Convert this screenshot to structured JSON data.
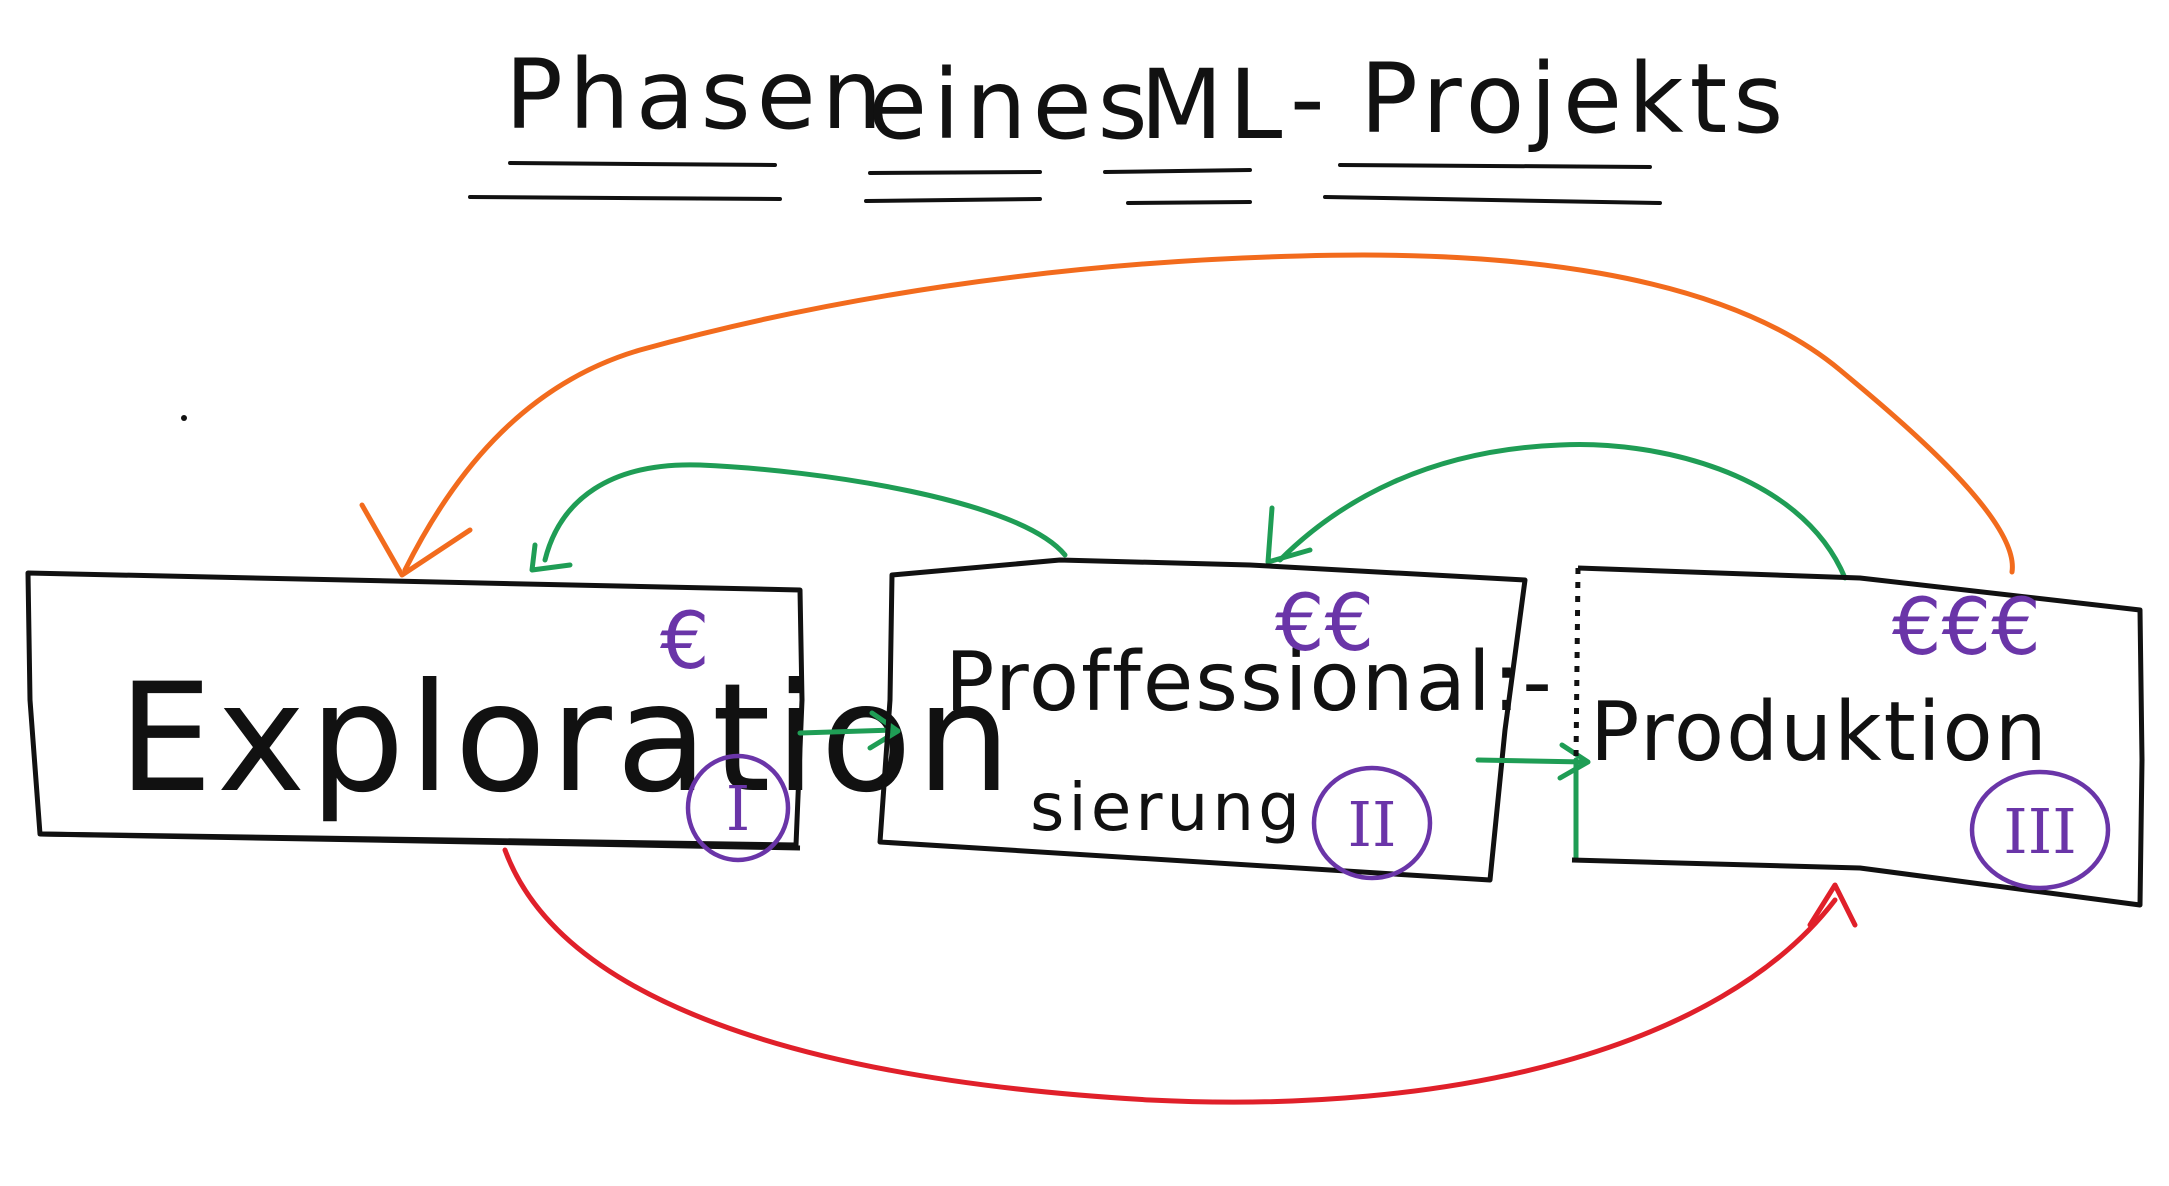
{
  "title": {
    "words": [
      "Phasen",
      "eines",
      "ML",
      "-",
      "Projekts"
    ]
  },
  "phases": [
    {
      "label": "Exploration",
      "cost": "€",
      "numeral": "I"
    },
    {
      "label_line1": "Proffessional:-",
      "label_line2": "sierung",
      "cost": "€€",
      "numeral": "II"
    },
    {
      "label": "Produktion",
      "cost": "€€€",
      "numeral": "III"
    }
  ],
  "colors": {
    "ink": "#111111",
    "forward_arrow": "#1f9d55",
    "feedback_arrow": "#1f9d55",
    "long_feedback_arrow": "#f26b1d",
    "skip_arrow": "#e0202a",
    "marker": "#6a35a8"
  }
}
